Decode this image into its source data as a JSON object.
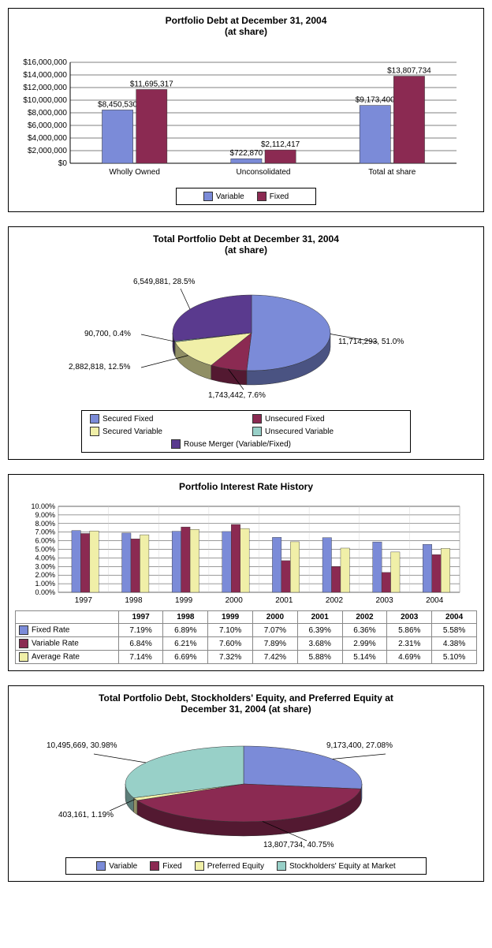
{
  "chart1": {
    "type": "bar",
    "title": "Portfolio Debt at December 31, 2004\n(at share)",
    "categories": [
      "Wholly Owned",
      "Unconsolidated",
      "Total at share"
    ],
    "series": [
      {
        "name": "Variable",
        "color": "#7b8bd8",
        "values": [
          8450530,
          722870,
          9173400
        ],
        "labels": [
          "$8,450,530",
          "$722,870",
          "$9,173,400"
        ]
      },
      {
        "name": "Fixed",
        "color": "#8b2a52",
        "values": [
          11695317,
          2112417,
          13807734
        ],
        "labels": [
          "$11,695,317",
          "$2,112,417",
          "$13,807,734"
        ]
      }
    ],
    "ylim": [
      0,
      16000000
    ],
    "ytick_step": 2000000,
    "ytick_labels": [
      "$0",
      "$2,000,000",
      "$4,000,000",
      "$6,000,000",
      "$8,000,000",
      "$10,000,000",
      "$12,000,000",
      "$14,000,000",
      "$16,000,000"
    ],
    "grid_color": "#000000",
    "border_color": "#888888"
  },
  "chart2": {
    "type": "pie",
    "title": "Total Portfolio Debt at December 31, 2004\n(at share)",
    "slices": [
      {
        "name": "Secured Fixed",
        "color": "#7b8bd8",
        "value": 11714293,
        "pct": "51.0%",
        "label": "11,714,293, 51.0%"
      },
      {
        "name": "Unsecured Fixed",
        "color": "#8b2a52",
        "value": 1743442,
        "pct": "7.6%",
        "label": "1,743,442, 7.6%"
      },
      {
        "name": "Secured Variable",
        "color": "#f0efa8",
        "value": 2882818,
        "pct": "12.5%",
        "label": "2,882,818, 12.5%"
      },
      {
        "name": "Unsecured Variable",
        "color": "#98d0c8",
        "value": 90700,
        "pct": "0.4%",
        "label": "90,700, 0.4%"
      },
      {
        "name": "Rouse Merger (Variable/Fixed)",
        "color": "#5a3a8e",
        "value": 6549881,
        "pct": "28.5%",
        "label": "6,549,881, 28.5%"
      }
    ]
  },
  "chart3": {
    "type": "bar",
    "title": "Portfolio Interest Rate History",
    "years": [
      "1997",
      "1998",
      "1999",
      "2000",
      "2001",
      "2002",
      "2003",
      "2004"
    ],
    "series": [
      {
        "name": "Fixed Rate",
        "color": "#7b8bd8",
        "values": [
          7.19,
          6.89,
          7.1,
          7.07,
          6.39,
          6.36,
          5.86,
          5.58
        ],
        "labels": [
          "7.19%",
          "6.89%",
          "7.10%",
          "7.07%",
          "6.39%",
          "6.36%",
          "5.86%",
          "5.58%"
        ]
      },
      {
        "name": "Variable Rate",
        "color": "#8b2a52",
        "values": [
          6.84,
          6.21,
          7.6,
          7.89,
          3.68,
          2.99,
          2.31,
          4.38
        ],
        "labels": [
          "6.84%",
          "6.21%",
          "7.60%",
          "7.89%",
          "3.68%",
          "2.99%",
          "2.31%",
          "4.38%"
        ]
      },
      {
        "name": "Average Rate",
        "color": "#f0efa8",
        "values": [
          7.14,
          6.69,
          7.32,
          7.42,
          5.88,
          5.14,
          4.69,
          5.1
        ],
        "labels": [
          "7.14%",
          "6.69%",
          "7.32%",
          "7.42%",
          "5.88%",
          "5.14%",
          "4.69%",
          "5.10%"
        ]
      }
    ],
    "ylim": [
      0,
      10
    ],
    "ytick_step": 1,
    "ytick_labels": [
      "0.00%",
      "1.00%",
      "2.00%",
      "3.00%",
      "4.00%",
      "5.00%",
      "6.00%",
      "7.00%",
      "8.00%",
      "9.00%",
      "10.00%"
    ],
    "grid_color": "#000000"
  },
  "chart4": {
    "type": "pie",
    "title": "Total Portfolio Debt, Stockholders' Equity, and Preferred Equity at\nDecember 31, 2004  (at share)",
    "slices": [
      {
        "name": "Variable",
        "color": "#7b8bd8",
        "value": 9173400,
        "pct": "27.08%",
        "label": "9,173,400, 27.08%"
      },
      {
        "name": "Fixed",
        "color": "#8b2a52",
        "value": 13807734,
        "pct": "40.75%",
        "label": "13,807,734, 40.75%"
      },
      {
        "name": "Preferred Equity",
        "color": "#f0efa8",
        "value": 403161,
        "pct": "1.19%",
        "label": "403,161, 1.19%"
      },
      {
        "name": "Stockholders' Equity at Market",
        "color": "#98d0c8",
        "value": 10495669,
        "pct": "30.98%",
        "label": "10,495,669, 30.98%"
      }
    ]
  }
}
